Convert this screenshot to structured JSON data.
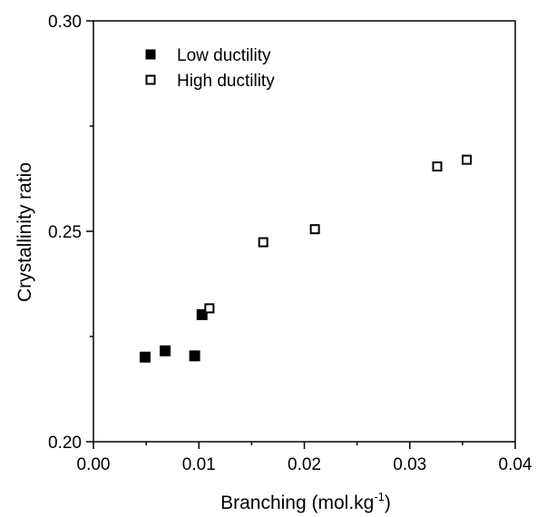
{
  "chart_data": {
    "type": "scatter",
    "title": "",
    "xlabel": "Branching (mol.kg",
    "xlabel_superscript": "-1",
    "xlabel_suffix": ")",
    "ylabel": "Crystallinity ratio",
    "xlim": [
      0.0,
      0.04
    ],
    "ylim": [
      0.2,
      0.3
    ],
    "x_ticks": [
      "0.00",
      "0.01",
      "0.02",
      "0.03",
      "0.04"
    ],
    "y_ticks": [
      "0.20",
      "0.25",
      "0.30"
    ],
    "x_tick_values": [
      0.0,
      0.01,
      0.02,
      0.03,
      0.04
    ],
    "y_tick_values": [
      0.2,
      0.25,
      0.3
    ],
    "grid": false,
    "legend_position": "top-left",
    "series": [
      {
        "name": "Low ductility",
        "marker": "filled-square",
        "color": "#000000",
        "x": [
          0.0049,
          0.0068,
          0.0096,
          0.0103
        ],
        "y": [
          0.2201,
          0.2216,
          0.2204,
          0.2302
        ]
      },
      {
        "name": "High ductility",
        "marker": "open-square",
        "color": "#000000",
        "x": [
          0.011,
          0.0161,
          0.021,
          0.0326,
          0.0354
        ],
        "y": [
          0.2317,
          0.2474,
          0.2505,
          0.2654,
          0.267
        ]
      }
    ]
  }
}
